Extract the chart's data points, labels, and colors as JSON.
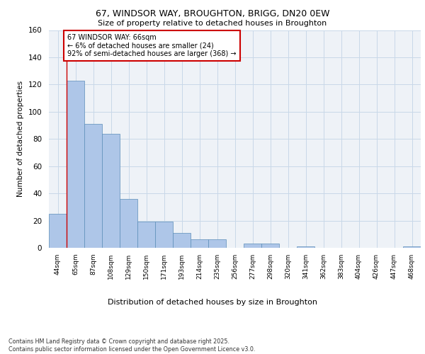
{
  "title1": "67, WINDSOR WAY, BROUGHTON, BRIGG, DN20 0EW",
  "title2": "Size of property relative to detached houses in Broughton",
  "xlabel": "Distribution of detached houses by size in Broughton",
  "ylabel": "Number of detached properties",
  "categories": [
    "44sqm",
    "65sqm",
    "87sqm",
    "108sqm",
    "129sqm",
    "150sqm",
    "171sqm",
    "193sqm",
    "214sqm",
    "235sqm",
    "256sqm",
    "277sqm",
    "298sqm",
    "320sqm",
    "341sqm",
    "362sqm",
    "383sqm",
    "404sqm",
    "426sqm",
    "447sqm",
    "468sqm"
  ],
  "values": [
    25,
    123,
    91,
    84,
    36,
    19,
    19,
    11,
    6,
    6,
    0,
    3,
    3,
    0,
    1,
    0,
    0,
    0,
    0,
    0,
    1
  ],
  "bar_color": "#aec6e8",
  "bar_edge_color": "#5b8db8",
  "annotation_text": "67 WINDSOR WAY: 66sqm\n← 6% of detached houses are smaller (24)\n92% of semi-detached houses are larger (368) →",
  "annotation_box_color": "#ffffff",
  "annotation_border_color": "#cc0000",
  "ylim": [
    0,
    160
  ],
  "yticks": [
    0,
    20,
    40,
    60,
    80,
    100,
    120,
    140,
    160
  ],
  "footer_text": "Contains HM Land Registry data © Crown copyright and database right 2025.\nContains public sector information licensed under the Open Government Licence v3.0.",
  "grid_color": "#c8d8e8",
  "bg_color": "#eef2f7"
}
